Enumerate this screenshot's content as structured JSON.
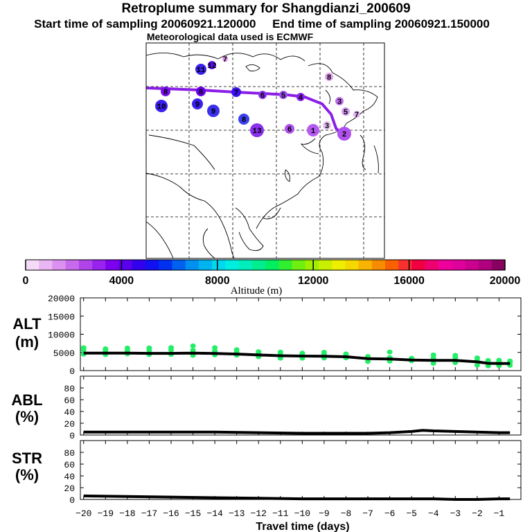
{
  "title": "Retroplume summary for Shangdianzi_200609",
  "start_label": "Start time of sampling 20060921.120000",
  "end_label": "End time of sampling 20060921.150000",
  "met_label": "Meteorological data used is ECMWF",
  "colors": {
    "trajectory": "#8a1ee6",
    "points": "#22ee66",
    "line": "#000000"
  },
  "map_labels": [
    "8",
    "8",
    "7",
    "6",
    "5",
    "4",
    "3",
    "5",
    "7",
    "1",
    "2",
    "3",
    "9",
    "9",
    "8",
    "10",
    "11",
    "12",
    "13",
    "6",
    "7",
    "8"
  ],
  "colorbar": {
    "ticks": [
      "0",
      "4000",
      "8000",
      "12000",
      "16000",
      "20000"
    ],
    "label": "Altitude (m)",
    "colors": [
      "#f4dcf8",
      "#eab6f4",
      "#dc90f0",
      "#c86aec",
      "#b044ea",
      "#9822ee",
      "#7d00ee",
      "#5a00ee",
      "#3300ee",
      "#1010f0",
      "#0030f0",
      "#0060f0",
      "#0090f0",
      "#00b4f0",
      "#00d8f0",
      "#00eee0",
      "#00eebc",
      "#00ee90",
      "#00ee60",
      "#30ee30",
      "#70ee10",
      "#a0ee00",
      "#c8ee00",
      "#eeee00",
      "#f4d800",
      "#f8b400",
      "#f88c00",
      "#f86000",
      "#f83030",
      "#f00040",
      "#ee0070",
      "#ee009a",
      "#e0009c",
      "#cc0090",
      "#b00080",
      "#880060"
    ]
  },
  "chart_data": [
    {
      "type": "line",
      "panel": "ALT",
      "ylabel": "ALT\n(m)",
      "ylabel_lines": [
        "ALT",
        "(m)"
      ],
      "ylim": [
        0,
        20000
      ],
      "yticks": [
        "20000",
        "15000",
        "10000",
        "5000",
        "0"
      ],
      "series": [
        {
          "name": "median altitude",
          "x": [
            -20,
            -19,
            -18,
            -17,
            -16,
            -15,
            -14,
            -13,
            -12,
            -11,
            -10,
            -9,
            -8,
            -7,
            -6,
            -5,
            -4,
            -3,
            -2,
            -1.5,
            -1,
            -0.5
          ],
          "y": [
            4800,
            4800,
            4800,
            4750,
            4750,
            4800,
            4700,
            4550,
            4300,
            4100,
            4000,
            3950,
            3800,
            3300,
            3200,
            2900,
            2800,
            2800,
            2400,
            2000,
            1950,
            1950
          ]
        }
      ]
    },
    {
      "type": "line",
      "panel": "ABL",
      "ylabel_lines": [
        "ABL",
        "(%)"
      ],
      "ylim": [
        0,
        100
      ],
      "yticks": [
        "80",
        "60",
        "40",
        "20",
        "0"
      ],
      "series": [
        {
          "name": "ABL fraction",
          "x": [
            -20,
            -18,
            -16,
            -14,
            -12,
            -10,
            -8,
            -7,
            -6,
            -5,
            -4.5,
            -4,
            -3,
            -2,
            -1,
            -0.5
          ],
          "y": [
            5,
            5,
            5,
            5,
            4,
            3,
            3,
            3,
            4,
            6,
            8,
            7,
            6,
            5,
            4,
            4
          ]
        }
      ]
    },
    {
      "type": "line",
      "panel": "STR",
      "ylabel_lines": [
        "STR",
        "(%)"
      ],
      "ylim": [
        0,
        100
      ],
      "yticks": [
        "80",
        "60",
        "40",
        "20",
        "0"
      ],
      "series": [
        {
          "name": "STR fraction",
          "x": [
            -20,
            -18,
            -16,
            -14,
            -12,
            -10,
            -8,
            -6,
            -4,
            -3,
            -2,
            -1,
            -0.5
          ],
          "y": [
            6,
            5,
            4,
            3,
            2,
            1,
            1,
            1,
            1,
            0,
            0,
            1,
            1
          ]
        }
      ]
    }
  ],
  "xaxis": {
    "label": "Travel time (days)",
    "ticks": [
      "−20",
      "−19",
      "−18",
      "−17",
      "−16",
      "−15",
      "−14",
      "−13",
      "−12",
      "−11",
      "−10",
      "−9",
      "−8",
      "−7",
      "−6",
      "−5",
      "−4",
      "−3",
      "−2",
      "−1"
    ],
    "range": [
      -20.15,
      0
    ]
  }
}
